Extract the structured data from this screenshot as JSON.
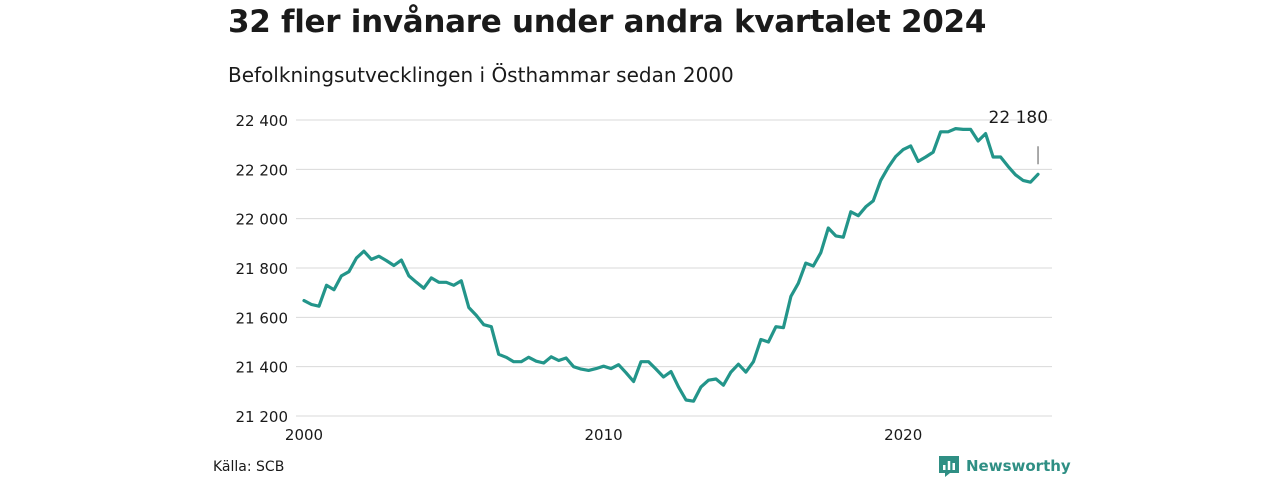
{
  "header": {
    "title": "32 fler invånare under andra kvartalet 2024",
    "subtitle": "Befolkningsutvecklingen i Östhammar sedan 2000"
  },
  "footer": {
    "source": "Källa: SCB",
    "brand": "Newsworthy"
  },
  "colors": {
    "line": "#23958a",
    "grid": "#d9d9d9",
    "brand": "#2f8f84"
  },
  "chart_data": {
    "type": "line",
    "x_type": "year",
    "xlim": [
      2000,
      2025
    ],
    "ylim": [
      21200,
      22400
    ],
    "x_ticks": [
      2000,
      2010,
      2020
    ],
    "x_tick_labels": [
      "2000",
      "2010",
      "2020"
    ],
    "y_ticks": [
      21200,
      21400,
      21600,
      21800,
      22000,
      22200,
      22400
    ],
    "y_tick_labels": [
      "21 200",
      "21 400",
      "21 600",
      "21 800",
      "22 000",
      "22 200",
      "22 400"
    ],
    "grid": true,
    "annotation": {
      "label": "22 180",
      "x": 2024.5,
      "y": 22180
    },
    "series": [
      {
        "x": [
          2000.0,
          2000.25,
          2000.5,
          2000.75,
          2001.0,
          2001.25,
          2001.5,
          2001.75,
          2002.0,
          2002.25,
          2002.5,
          2002.75,
          2003.0,
          2003.25,
          2003.5,
          2003.75,
          2004.0,
          2004.25,
          2004.5,
          2004.75,
          2005.0,
          2005.25,
          2005.5,
          2005.75,
          2006.0,
          2006.25,
          2006.5,
          2006.75,
          2007.0,
          2007.25,
          2007.5,
          2007.75,
          2008.0,
          2008.25,
          2008.5,
          2008.75,
          2009.0,
          2009.25,
          2009.5,
          2009.75,
          2010.0,
          2010.25,
          2010.5,
          2010.75,
          2011.0,
          2011.25,
          2011.5,
          2011.75,
          2012.0,
          2012.25,
          2012.5,
          2012.75,
          2013.0,
          2013.25,
          2013.5,
          2013.75,
          2014.0,
          2014.25,
          2014.5,
          2014.75,
          2015.0,
          2015.25,
          2015.5,
          2015.75,
          2016.0,
          2016.25,
          2016.5,
          2016.75,
          2017.0,
          2017.25,
          2017.5,
          2017.75,
          2018.0,
          2018.25,
          2018.5,
          2018.75,
          2019.0,
          2019.25,
          2019.5,
          2019.75,
          2020.0,
          2020.25,
          2020.5,
          2020.75,
          2021.0,
          2021.25,
          2021.5,
          2021.75,
          2022.0,
          2022.25,
          2022.5,
          2022.75,
          2023.0,
          2023.25,
          2023.5,
          2023.75,
          2024.0,
          2024.25,
          2024.5
        ],
        "values": [
          21668,
          21652,
          21645,
          21730,
          21712,
          21768,
          21785,
          21840,
          21868,
          21835,
          21848,
          21830,
          21810,
          21832,
          21768,
          21742,
          21718,
          21760,
          21742,
          21742,
          21730,
          21748,
          21640,
          21608,
          21570,
          21562,
          21450,
          21438,
          21420,
          21420,
          21438,
          21422,
          21415,
          21440,
          21425,
          21435,
          21400,
          21390,
          21385,
          21392,
          21402,
          21392,
          21408,
          21375,
          21340,
          21420,
          21420,
          21390,
          21358,
          21380,
          21318,
          21265,
          21260,
          21318,
          21345,
          21350,
          21325,
          21378,
          21410,
          21378,
          21420,
          21510,
          21500,
          21562,
          21558,
          21685,
          21738,
          21820,
          21808,
          21862,
          21962,
          21930,
          21925,
          22028,
          22012,
          22048,
          22072,
          22155,
          22208,
          22252,
          22280,
          22295,
          22232,
          22250,
          22270,
          22352,
          22352,
          22365,
          22362,
          22362,
          22315,
          22345,
          22250,
          22250,
          22212,
          22178,
          22155,
          22148,
          22180
        ]
      }
    ]
  }
}
